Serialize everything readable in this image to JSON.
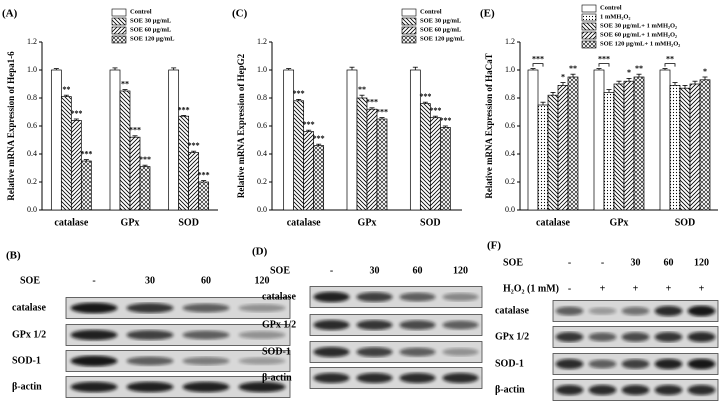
{
  "chart_data": [
    {
      "type": "bar",
      "panel": "(A)",
      "y_label": "Relative mRNA Expression of Hepa1-6",
      "categories": [
        "catalase",
        "GPx",
        "SOD"
      ],
      "ylim": [
        0,
        1.2
      ],
      "yticks": [
        {
          "value": 0,
          "label": "0.0"
        },
        0.2,
        0.4,
        0.6,
        0.8,
        {
          "value": 1,
          "label": "1.0"
        },
        1.2
      ],
      "legend": "upper right",
      "series": [
        {
          "name": "Control",
          "color": "#ffffff",
          "hatch": "none",
          "values": [
            1.0,
            1.0,
            1.0
          ],
          "errors": [
            0.01,
            0.015,
            0.015
          ]
        },
        {
          "name": "SOE 30 μg/mL",
          "color": "#ffffff",
          "hatch": "back",
          "values": [
            0.81,
            0.85,
            0.67
          ],
          "errors": [
            0.01,
            0.01,
            0.005
          ],
          "significance": [
            "**",
            "**",
            "***"
          ]
        },
        {
          "name": "SOE 60 μg/mL",
          "color": "#ffffff",
          "hatch": "forward",
          "values": [
            0.64,
            0.52,
            0.41
          ],
          "errors": [
            0.01,
            0.01,
            0.01
          ],
          "significance": [
            "***",
            "***",
            "***"
          ]
        },
        {
          "name": "SOE 120 μg/mL",
          "color": "#ffffff",
          "hatch": "cross",
          "values": [
            0.35,
            0.31,
            0.2
          ],
          "errors": [
            0.01,
            0.01,
            0.01
          ],
          "significance": [
            "***",
            "***",
            "***"
          ]
        }
      ]
    },
    {
      "type": "bar",
      "panel": "(C)",
      "y_label": "Relative mRNA Expression of HepG2",
      "categories": [
        "catalase",
        "GPx",
        "SOD"
      ],
      "ylim": [
        0,
        1.2
      ],
      "yticks": [
        {
          "value": 0,
          "label": "0.0"
        },
        0.2,
        0.4,
        0.6,
        0.8,
        {
          "value": 1,
          "label": "1.0"
        },
        1.2
      ],
      "legend": "upper right",
      "series": [
        {
          "name": "Control",
          "color": "#ffffff",
          "hatch": "none",
          "values": [
            1.0,
            1.0,
            1.0
          ],
          "errors": [
            0.01,
            0.02,
            0.02
          ]
        },
        {
          "name": "SOE 30 μg/mL",
          "color": "#ffffff",
          "hatch": "back",
          "values": [
            0.78,
            0.8,
            0.76
          ],
          "errors": [
            0.01,
            0.02,
            0.01
          ],
          "significance": [
            "***",
            "**",
            "***"
          ]
        },
        {
          "name": "SOE 60 μg/mL",
          "color": "#ffffff",
          "hatch": "forward",
          "values": [
            0.56,
            0.72,
            0.66
          ],
          "errors": [
            0.01,
            0.01,
            0.01
          ],
          "significance": [
            "***",
            "***",
            "***"
          ]
        },
        {
          "name": "SOE 120 μg/mL",
          "color": "#ffffff",
          "hatch": "cross",
          "values": [
            0.46,
            0.65,
            0.59
          ],
          "errors": [
            0.01,
            0.01,
            0.01
          ],
          "significance": [
            "***",
            "***",
            "***"
          ]
        }
      ]
    },
    {
      "type": "bar",
      "panel": "(E)",
      "y_label": "Relative mRNA Expression of HaCaT",
      "categories": [
        "catalase",
        "GPx",
        "SOD"
      ],
      "ylim": [
        0,
        1.2
      ],
      "yticks": [
        {
          "value": 0,
          "label": "0.0"
        },
        0.2,
        0.4,
        0.6,
        0.8,
        {
          "value": 1,
          "label": "1.0"
        },
        1.2
      ],
      "legend": "upper right",
      "series": [
        {
          "name": "Control",
          "color": "#ffffff",
          "hatch": "none",
          "values": [
            1.0,
            1.0,
            1.0
          ],
          "errors": [
            0.01,
            0.01,
            0.01
          ]
        },
        {
          "name": "1 mMH₂O₂",
          "color": "#ffffff",
          "hatch": "dots",
          "values": [
            0.75,
            0.84,
            0.89
          ],
          "errors": [
            0.02,
            0.02,
            0.02
          ],
          "significance": [
            "***",
            "***",
            "**"
          ],
          "bracket": true
        },
        {
          "name": "SOE 30 μg/mL+ 1 mMH₂O₂",
          "color": "#ffffff",
          "hatch": "back",
          "values": [
            0.82,
            0.9,
            0.87
          ],
          "errors": [
            0.02,
            0.02,
            0.02
          ],
          "significance": [
            null,
            null,
            null
          ]
        },
        {
          "name": "SOE 60 μg/mL+ 1 mMH₂O₂",
          "color": "#ffffff",
          "hatch": "forward",
          "values": [
            0.89,
            0.92,
            0.9
          ],
          "errors": [
            0.02,
            0.02,
            0.02
          ],
          "significance": [
            "*",
            "*",
            null
          ]
        },
        {
          "name": "SOE 120 μg/mL+ 1 mMH₂O₂",
          "color": "#ffffff",
          "hatch": "cross",
          "values": [
            0.95,
            0.95,
            0.93
          ],
          "errors": [
            0.02,
            0.02,
            0.02
          ],
          "significance": [
            "**",
            "**",
            "*"
          ]
        }
      ]
    }
  ],
  "blots": [
    {
      "panel": "(B)",
      "header": [
        {
          "label": "SOE",
          "lanes": [
            "-",
            "30",
            "60",
            "120"
          ]
        }
      ],
      "rows": [
        "catalase",
        "GPx 1/2",
        "SOD-1",
        "β-actin"
      ]
    },
    {
      "panel": "(D)",
      "header": [
        {
          "label": "SOE",
          "lanes": [
            "-",
            "30",
            "60",
            "120"
          ]
        }
      ],
      "rows": [
        "catalase",
        "GPx 1/2",
        "SOD-1",
        "β-actin"
      ]
    },
    {
      "panel": "(F)",
      "header": [
        {
          "label": "SOE",
          "lanes": [
            "-",
            "-",
            "30",
            "60",
            "120"
          ]
        },
        {
          "label": "H₂O₂ (1 mM)",
          "lanes": [
            "-",
            "+",
            "+",
            "+",
            "+"
          ]
        }
      ],
      "rows": [
        "catalase",
        "GPx 1/2",
        "SOD-1",
        "β-actin"
      ]
    }
  ]
}
